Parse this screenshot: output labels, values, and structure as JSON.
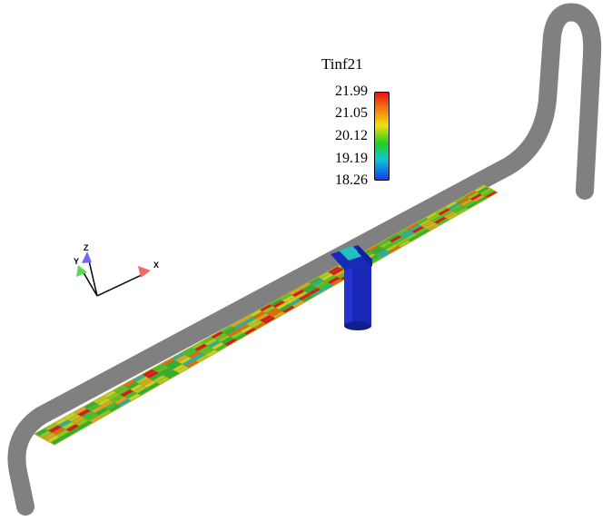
{
  "legend": {
    "title": "Tinf21",
    "ticks": [
      "21.99",
      "21.05",
      "20.12",
      "19.19",
      "18.26"
    ],
    "colors": [
      "#ee1010",
      "#f07a10",
      "#f0e010",
      "#20d020",
      "#10c8d0",
      "#1040f0"
    ]
  },
  "axes": {
    "x_label": "X",
    "y_label": "Y",
    "z_label": "Z"
  },
  "colors": {
    "pipe": "#808080",
    "riser": "#1a28b8",
    "background": "#ffffff"
  }
}
